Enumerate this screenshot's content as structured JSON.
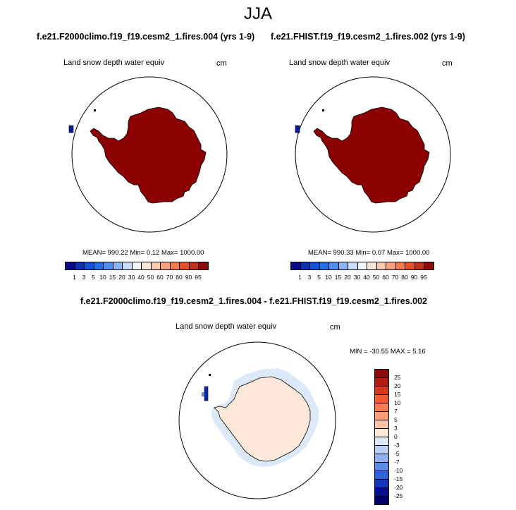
{
  "figure": {
    "title": "JJA"
  },
  "panels": [
    {
      "case": "f.e21.F2000climo.f19_f19.cesm2_1.fires.004 (yrs 1-9)",
      "variable": "Land snow depth water equiv",
      "units": "cm",
      "stats": "MEAN= 990.22  Min=   0.12  Max= 1000.00"
    },
    {
      "case": "f.e21.FHIST.f19_f19.cesm2_1.fires.002 (yrs 1-9)",
      "variable": "Land snow depth water equiv",
      "units": "cm",
      "stats": "MEAN= 990.33  Min=   0.07  Max= 1000.00"
    }
  ],
  "diff_panel": {
    "case": "f.e21.F2000climo.f19_f19.cesm2_1.fires.004 - f.e21.FHIST.f19_f19.cesm2_1.fires.002",
    "variable": "Land snow depth water equiv",
    "units": "cm",
    "stats": "MIN = -30.55 MAX =   5.16"
  },
  "chart_data": [
    {
      "type": "heatmap",
      "projection": "south polar stereographic",
      "field": "Land snow depth water equiv",
      "units": "cm",
      "colorbar": {
        "orientation": "horizontal",
        "levels": [
          1,
          3,
          5,
          10,
          15,
          20,
          30,
          40,
          50,
          60,
          70,
          80,
          90,
          95
        ],
        "colors": [
          "#08088a",
          "#0b2fb5",
          "#1450d9",
          "#2a6ee6",
          "#4f8ef0",
          "#8db4f5",
          "#c8dcfa",
          "#f2f6fc",
          "#fde4d4",
          "#fbc8aa",
          "#f7a27c",
          "#f27a4e",
          "#e2512a",
          "#c0301c",
          "#8b0a0a"
        ]
      },
      "regions": [
        {
          "name": "Antarctica",
          "value_class": ">95",
          "color": "#8b0000"
        },
        {
          "name": "Southern Patagonia",
          "value_class": "<3",
          "color": "#0b1b9c"
        }
      ],
      "mean": 990.22,
      "min": 0.12,
      "max": 1000.0
    },
    {
      "type": "heatmap",
      "projection": "south polar stereographic",
      "field": "Land snow depth water equiv",
      "units": "cm",
      "colorbar": {
        "orientation": "horizontal",
        "levels": [
          1,
          3,
          5,
          10,
          15,
          20,
          30,
          40,
          50,
          60,
          70,
          80,
          90,
          95
        ],
        "colors": [
          "#08088a",
          "#0b2fb5",
          "#1450d9",
          "#2a6ee6",
          "#4f8ef0",
          "#8db4f5",
          "#c8dcfa",
          "#f2f6fc",
          "#fde4d4",
          "#fbc8aa",
          "#f7a27c",
          "#f27a4e",
          "#e2512a",
          "#c0301c",
          "#8b0a0a"
        ]
      },
      "regions": [
        {
          "name": "Antarctica",
          "value_class": ">95",
          "color": "#8b0000"
        },
        {
          "name": "Southern Patagonia",
          "value_class": "<3",
          "color": "#0b1b9c"
        }
      ],
      "mean": 990.33,
      "min": 0.07,
      "max": 1000.0
    },
    {
      "type": "heatmap",
      "projection": "south polar stereographic",
      "field": "Land snow depth water equiv (difference)",
      "units": "cm",
      "colorbar": {
        "orientation": "vertical",
        "levels": [
          25,
          20,
          15,
          10,
          7,
          5,
          3,
          0,
          -3,
          -5,
          -7,
          -10,
          -15,
          -20,
          -25
        ],
        "colors": [
          "#8b0a0a",
          "#b01c12",
          "#d43a1e",
          "#ee5a32",
          "#f67d52",
          "#fa9e76",
          "#fcc3a4",
          "#fde8d9",
          "#dce9f8",
          "#b9d0f4",
          "#8cb1ee",
          "#5c8ce6",
          "#2f63d9",
          "#1638b6",
          "#08118a",
          "#000066"
        ]
      },
      "regions": [
        {
          "name": "Antarctica interior",
          "value_class": "0 to 3",
          "color": "#fde8d9"
        },
        {
          "name": "Antarctic coast margin",
          "value_class": "-3 to 0",
          "color": "#dce9f8"
        },
        {
          "name": "Southern Patagonia",
          "value_class": "< -25",
          "color": "#0a2aa0"
        }
      ],
      "min": -30.55,
      "max": 5.16
    }
  ]
}
